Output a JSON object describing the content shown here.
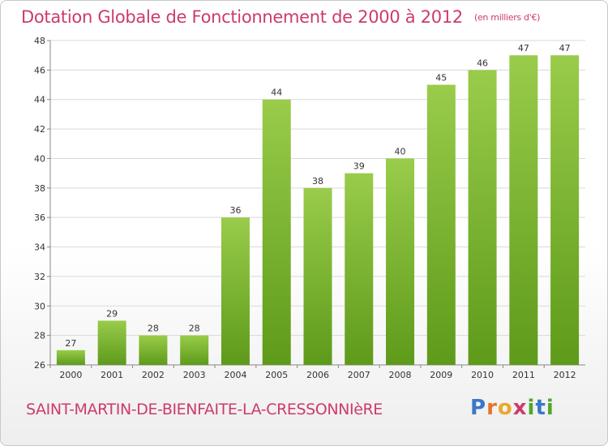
{
  "header": {
    "title": "Dotation Globale de Fonctionnement de 2000 à 2012",
    "unit": "(en milliers d'€)"
  },
  "footer": {
    "commune": "SAINT-MARTIN-DE-BIENFAITE-LA-CRESSONNIèRE",
    "brand": "Proxiti",
    "brand_colors": [
      "#3a78c8",
      "#e8732a",
      "#e8a92a",
      "#cc3b6c",
      "#52a52a",
      "#3a78c8",
      "#52a52a"
    ]
  },
  "colors": {
    "bar_top": "#99cc4a",
    "bar_bottom": "#5e9a1a",
    "grid": "#d9d9d9",
    "axis": "#888888",
    "text": "#333333",
    "title": "#cc3b6c"
  },
  "chart_data": {
    "type": "bar",
    "categories": [
      "2000",
      "2001",
      "2002",
      "2003",
      "2004",
      "2005",
      "2006",
      "2007",
      "2008",
      "2009",
      "2010",
      "2011",
      "2012"
    ],
    "values": [
      27,
      29,
      28,
      28,
      36,
      44,
      38,
      39,
      40,
      45,
      46,
      47,
      47
    ],
    "title": "Dotation Globale de Fonctionnement de 2000 à 2012",
    "subtitle": "(en milliers d'€)",
    "xlabel": "",
    "ylabel": "",
    "ylim": [
      26,
      48
    ],
    "yticks": [
      26,
      28,
      30,
      32,
      34,
      36,
      38,
      40,
      42,
      44,
      46,
      48
    ],
    "grid": true
  }
}
